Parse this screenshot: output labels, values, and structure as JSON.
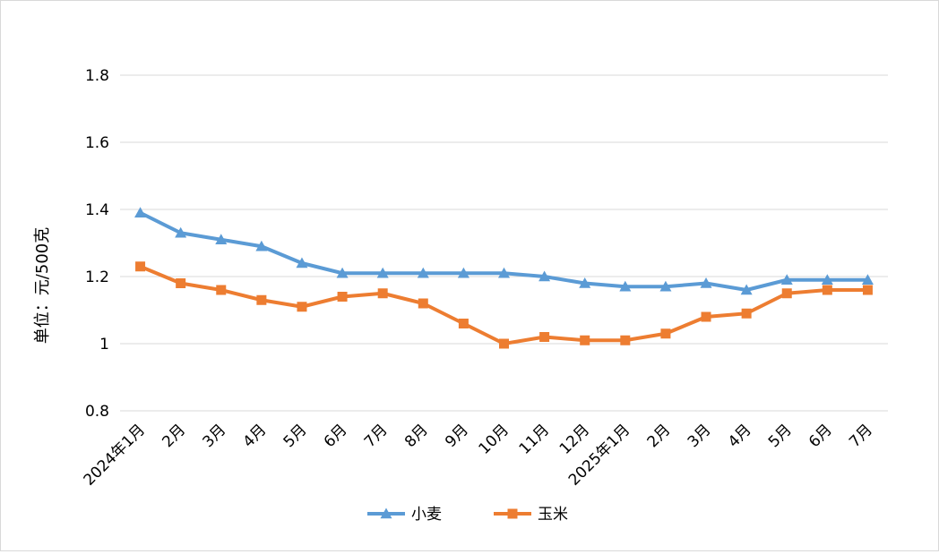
{
  "chart_data": {
    "type": "line",
    "title": "",
    "ylabel": "单位：元/500克",
    "xlabel": "",
    "ylim": [
      0.8,
      1.8
    ],
    "yticks": [
      0.8,
      1,
      1.2,
      1.4,
      1.6,
      1.8
    ],
    "ytick_labels": [
      "0.8",
      "1",
      "1.2",
      "1.4",
      "1.6",
      "1.8"
    ],
    "grid": true,
    "legend_position": "bottom-center",
    "categories": [
      "2024年1月",
      "2月",
      "3月",
      "4月",
      "5月",
      "6月",
      "7月",
      "8月",
      "9月",
      "10月",
      "11月",
      "12月",
      "2025年1月",
      "2月",
      "3月",
      "4月",
      "5月",
      "6月",
      "7月"
    ],
    "series": [
      {
        "name": "小麦",
        "color": "#5B9BD5",
        "marker": "triangle",
        "values": [
          1.39,
          1.33,
          1.31,
          1.29,
          1.24,
          1.21,
          1.21,
          1.21,
          1.21,
          1.21,
          1.2,
          1.18,
          1.17,
          1.17,
          1.18,
          1.16,
          1.19,
          1.19,
          1.19
        ]
      },
      {
        "name": "玉米",
        "color": "#ED7D31",
        "marker": "square",
        "values": [
          1.23,
          1.18,
          1.16,
          1.13,
          1.11,
          1.14,
          1.15,
          1.12,
          1.06,
          1.0,
          1.02,
          1.01,
          1.01,
          1.03,
          1.08,
          1.09,
          1.15,
          1.16,
          1.16
        ]
      }
    ]
  }
}
